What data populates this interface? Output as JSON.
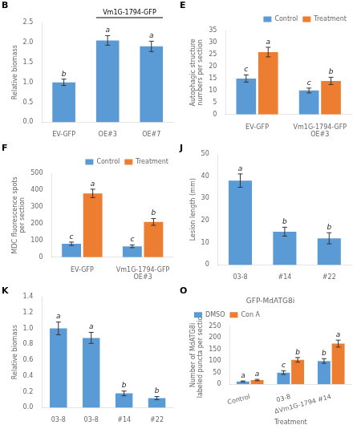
{
  "chart_data": [
    {
      "type": "bar",
      "panel_label": "B",
      "categories": [
        "EV-GFP",
        "OE#3",
        "OE#7"
      ],
      "series": [
        {
          "color": "#5b9bd5",
          "values": [
            1.0,
            2.05,
            1.9
          ],
          "errors": [
            0.08,
            0.12,
            0.13
          ],
          "letters": [
            "b",
            "a",
            "a"
          ]
        }
      ],
      "ylabel": "Relative biomass",
      "ylim": [
        0,
        2.5
      ],
      "yticks": [
        {
          "value": 0,
          "label": "0.0"
        },
        0.5,
        {
          "value": 1,
          "label": "1.0"
        },
        1.5,
        {
          "value": 2,
          "label": "2.0"
        },
        2.5
      ],
      "bracket": {
        "label": "Vm1G-1794-GFP",
        "categories": [
          "OE#3",
          "OE#7"
        ]
      },
      "grid": false
    },
    {
      "type": "bar",
      "panel_label": "E",
      "categories": [
        "EV-GFP",
        "Vm1G-1794-GFP\nOE#3"
      ],
      "series": [
        {
          "name": "Control",
          "color": "#5b9bd5",
          "values": [
            15,
            10
          ],
          "errors": [
            1.5,
            1.0
          ],
          "letters": [
            "c",
            "c"
          ]
        },
        {
          "name": "Treatment",
          "color": "#ed7d31",
          "values": [
            26,
            14
          ],
          "errors": [
            2.0,
            1.5
          ],
          "letters": [
            "a",
            "b"
          ]
        }
      ],
      "ylabel": "Autophagic structure\nnumbers per section",
      "ylim": [
        0,
        35
      ],
      "yticks": [
        0,
        5,
        10,
        15,
        20,
        25,
        30,
        35
      ],
      "legend": "upper-right",
      "grid": false
    },
    {
      "type": "bar",
      "panel_label": "F",
      "categories": [
        "EV-GFP",
        "Vm1G-1794-GFP\nOE#3"
      ],
      "series": [
        {
          "name": "Control",
          "color": "#5b9bd5",
          "values": [
            80,
            65
          ],
          "errors": [
            10,
            8
          ],
          "letters": [
            "c",
            "c"
          ]
        },
        {
          "name": "Treatment",
          "color": "#ed7d31",
          "values": [
            380,
            210
          ],
          "errors": [
            25,
            20
          ],
          "letters": [
            "a",
            "b"
          ]
        }
      ],
      "ylabel": "MDC fluorescence spots\nper section",
      "ylim": [
        0,
        500
      ],
      "yticks": [
        0,
        100,
        200,
        300,
        400,
        500
      ],
      "legend": "upper-right",
      "grid": false
    },
    {
      "type": "bar",
      "panel_label": "J",
      "categories": [
        "03-8",
        "#14",
        "#22"
      ],
      "series": [
        {
          "color": "#5b9bd5",
          "values": [
            38,
            15,
            12
          ],
          "errors": [
            3.0,
            2.0,
            2.5
          ],
          "letters": [
            "a",
            "b",
            "b"
          ]
        }
      ],
      "ylabel": "Lesion length (mm)",
      "ylim": [
        0,
        50
      ],
      "yticks": [
        0,
        10,
        20,
        30,
        40,
        50
      ],
      "grid": false
    },
    {
      "type": "bar",
      "panel_label": "K",
      "categories": [
        "03-8",
        "03-8",
        "#14",
        "#22"
      ],
      "series": [
        {
          "color": "#5b9bd5",
          "values": [
            1.0,
            0.88,
            0.18,
            0.12
          ],
          "errors": [
            0.08,
            0.07,
            0.03,
            0.02
          ],
          "letters": [
            "a",
            "a",
            "b",
            "b"
          ]
        }
      ],
      "ylabel": "Relative biomass",
      "ylim": [
        0,
        1.4
      ],
      "yticks": [
        {
          "value": 0,
          "label": "0.0"
        },
        0.2,
        0.4,
        0.6,
        0.8,
        {
          "value": 1.0,
          "label": "1.0"
        },
        1.2,
        1.4
      ],
      "grid": false
    },
    {
      "type": "bar",
      "panel_label": "O",
      "title": "GFP-MdATG8i",
      "categories": [
        "Control",
        "03-8",
        "ΔVm1G-1794 #14"
      ],
      "series": [
        {
          "name": "DMSO",
          "color": "#5b9bd5",
          "values": [
            12,
            50,
            100
          ],
          "errors": [
            2,
            8,
            10
          ],
          "letters": [
            "a",
            "c",
            "b"
          ]
        },
        {
          "name": "Con A",
          "color": "#ed7d31",
          "values": [
            18,
            105,
            175
          ],
          "errors": [
            3,
            10,
            15
          ],
          "letters": [
            "a",
            "b",
            "a"
          ]
        }
      ],
      "xlabel": "Treatment",
      "ylabel": "Number of MdATG8i\nlabeled puncta per section",
      "ylim": [
        0,
        250
      ],
      "yticks": [
        0,
        50,
        100,
        150,
        200,
        250
      ],
      "legend": "upper-left",
      "grid": false
    }
  ]
}
